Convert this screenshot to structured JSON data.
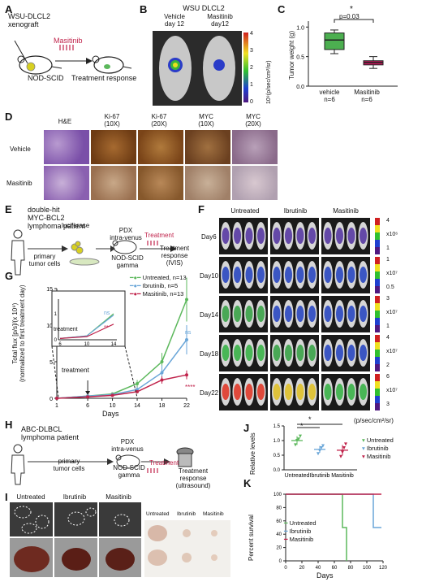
{
  "panels": {
    "A": {
      "label": "A",
      "xenograft": "WSU-DLCL2\nxenograft",
      "drug": "Masitinib",
      "mouse": "NOD-SCID",
      "outcome": "Treatment response"
    },
    "B": {
      "label": "B",
      "title": "WSU DLCL2",
      "groups": [
        "Vehicle\nday 12",
        "Masitinib\nday12"
      ],
      "scale_ticks": [
        "4",
        "3",
        "2",
        "1",
        "0"
      ],
      "scale_unit": "10⁹(p/sec/cm²/sr)"
    },
    "C": {
      "label": "C",
      "ylabel": "Tumor weight (g)",
      "pvalue": "p=0.03",
      "star": "*",
      "yticks": [
        "0.0",
        "0.5",
        "1.0"
      ],
      "groups": [
        "vehicle\nn=6",
        "Masitinib\nn=6"
      ],
      "colors": [
        "#4caf50",
        "#c2185b"
      ]
    },
    "D": {
      "label": "D",
      "columns": [
        "H&E",
        "Ki-67\n(10X)",
        "Ki-67\n(20X)",
        "MYC\n(10X)",
        "MYC\n(20X)"
      ],
      "rows": [
        "Vehicle",
        "Masitinib"
      ]
    },
    "E": {
      "label": "E",
      "patient": "double-hit\nMYC-BCL2\nlymphoma patient",
      "cells": "primary\ntumor cells",
      "luciferase": "luciferase",
      "pdx": "PDX\nintra-venus",
      "mouse": "NOD-SCID\ngamma",
      "treatment": "Treatment",
      "outcome": "Treatment\nresponse\n(IVIS)"
    },
    "F": {
      "label": "F",
      "columns": [
        "Untreated",
        "Ibrutinib",
        "Masitinib"
      ],
      "rows": [
        "Day6",
        "Day10",
        "Day14",
        "Day18",
        "Day22"
      ],
      "scales": [
        {
          "top": "4",
          "mid": "x10⁶",
          "bot": "1"
        },
        {
          "top": "1",
          "mid": "x10⁷",
          "bot": "0.5"
        },
        {
          "top": "3",
          "mid": "x10⁷",
          "bot": "1"
        },
        {
          "top": "4",
          "mid": "x10⁷",
          "bot": "2"
        },
        {
          "top": "6",
          "mid": "x10⁷",
          "bot": "3"
        }
      ],
      "unit": "(p/sec/cm²/sr)"
    },
    "G": {
      "label": "G",
      "ylabel": "Total flux [p/s]/(x 10⁹)\n(normalized to first treatment day)",
      "xlabel": "Days",
      "treatment_label": "treatment",
      "inset_treatment": "treatment",
      "ns1": "ns",
      "ns2": "ns",
      "star_inset": "**",
      "star_main": "****",
      "legend": [
        "Untreated, n=13",
        "Ibrutinib, n=5",
        "Masitinib, n=13"
      ]
    },
    "H": {
      "label": "H",
      "patient": "ABC-DLBCL\nlymphoma patient",
      "cells": "primary\ntumor cells",
      "pdx": "PDX\nintra-venus",
      "mouse": "NOD-SCID\ngamma",
      "treatment": "Treatment",
      "outcome": "Treatment\nresponse\n(ultrasound)"
    },
    "I": {
      "label": "I",
      "columns": [
        "Untreated",
        "Ibrutinib",
        "Masitinib"
      ],
      "columns_small": [
        "Untreated",
        "Ibrutinib",
        "Masitinib"
      ]
    },
    "J": {
      "label": "J",
      "ylabel": "Relative levels",
      "star1": "*",
      "star2": "*",
      "legend": [
        "Untreated",
        "Ibrutinib",
        "Masitinib"
      ]
    },
    "K": {
      "label": "K",
      "ylabel": "Percent survival",
      "xlabel": "Days",
      "legend": [
        "Untreated",
        "Ibrutinib",
        "Masitinib"
      ]
    }
  },
  "chart_data": [
    {
      "type": "box",
      "panel": "C",
      "ylabel": "Tumor weight (g)",
      "categories": [
        "vehicle",
        "Masitinib"
      ],
      "ylim": [
        0,
        1.1
      ],
      "boxes": [
        {
          "name": "vehicle",
          "min": 0.55,
          "q1": 0.62,
          "median": 0.78,
          "q3": 0.9,
          "max": 0.95,
          "color": "#4caf50"
        },
        {
          "name": "Masitinib",
          "min": 0.3,
          "q1": 0.36,
          "median": 0.4,
          "q3": 0.43,
          "max": 0.5,
          "color": "#c2185b"
        }
      ]
    },
    {
      "type": "line",
      "panel": "G",
      "xlabel": "Days",
      "x": [
        1,
        6,
        10,
        14,
        18,
        22
      ],
      "xticks": [
        1,
        6,
        10,
        14,
        18,
        22
      ],
      "yticks": [
        0,
        5,
        10,
        15
      ],
      "ylim": [
        0,
        15
      ],
      "series": [
        {
          "name": "Untreated, n=13",
          "color": "#5cb85c",
          "values": [
            0,
            0.3,
            0.6,
            2,
            5,
            13.5
          ],
          "err": [
            0,
            0.1,
            0.2,
            0.5,
            1.2,
            3
          ]
        },
        {
          "name": "Ibrutinib, n=5",
          "color": "#6aa6d8",
          "values": [
            0,
            0.3,
            0.5,
            1.2,
            3.5,
            8
          ],
          "err": [
            0,
            0.1,
            0.2,
            0.3,
            1,
            2
          ]
        },
        {
          "name": "Masitinib, n=13",
          "color": "#c0234b",
          "values": [
            0,
            0.2,
            0.4,
            0.9,
            2.5,
            3.2
          ],
          "err": [
            0,
            0.1,
            0.1,
            0.2,
            0.5,
            0.6
          ]
        }
      ],
      "inset": {
        "x": [
          6,
          10,
          14
        ],
        "xticks": [
          6,
          10,
          14
        ],
        "yticks": [
          0,
          1
        ],
        "ylim": [
          0,
          1.5
        ],
        "series": [
          {
            "name": "Untreated",
            "values": [
              0.05,
              0.15,
              1.0
            ]
          },
          {
            "name": "Ibrutinib",
            "values": [
              0.05,
              0.15,
              0.95
            ]
          },
          {
            "name": "Masitinib",
            "values": [
              0.05,
              0.12,
              0.6
            ]
          }
        ]
      }
    },
    {
      "type": "scatter",
      "panel": "J",
      "ylabel": "Relative levels",
      "categories": [
        "Untreated",
        "Ibrutinib",
        "Masitinib"
      ],
      "yticks": [
        0.0,
        0.5,
        1.0,
        1.5
      ],
      "ylim": [
        0,
        1.5
      ],
      "groups": [
        {
          "name": "Untreated",
          "color": "#5cb85c",
          "points": [
            0.85,
            1.0,
            1.05,
            1.15
          ],
          "mean": 1.0,
          "sd": 0.15
        },
        {
          "name": "Ibrutinib",
          "color": "#6aa6d8",
          "points": [
            0.55,
            0.65,
            0.75,
            0.82
          ],
          "mean": 0.7,
          "sd": 0.12
        },
        {
          "name": "Masitinib",
          "color": "#c0234b",
          "points": [
            0.45,
            0.6,
            0.75,
            0.88
          ],
          "mean": 0.67,
          "sd": 0.18
        }
      ]
    },
    {
      "type": "line",
      "panel": "K",
      "ylabel": "Percent survival",
      "xlabel": "Days",
      "xticks": [
        0,
        20,
        40,
        60,
        80,
        100,
        120
      ],
      "yticks": [
        0,
        20,
        40,
        60,
        80,
        100
      ],
      "xlim": [
        0,
        120
      ],
      "ylim": [
        0,
        100
      ],
      "series": [
        {
          "name": "Untreated",
          "color": "#5cb85c",
          "steps": [
            [
              0,
              100
            ],
            [
              70,
              100
            ],
            [
              70,
              50
            ],
            [
              75,
              50
            ],
            [
              75,
              0
            ]
          ]
        },
        {
          "name": "Ibrutinib",
          "color": "#6aa6d8",
          "steps": [
            [
              0,
              100
            ],
            [
              108,
              100
            ],
            [
              108,
              50
            ],
            [
              118,
              50
            ]
          ]
        },
        {
          "name": "Masitinib",
          "color": "#c0234b",
          "steps": [
            [
              0,
              100
            ],
            [
              118,
              100
            ]
          ]
        }
      ]
    }
  ]
}
